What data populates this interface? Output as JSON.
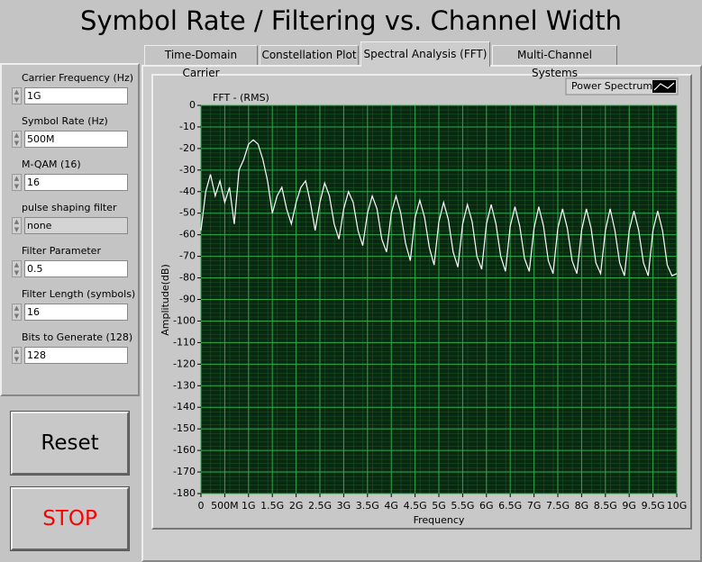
{
  "header": {
    "title": "Symbol Rate / Filtering vs. Channel Width"
  },
  "tabs": [
    "Time-Domain Carrier",
    "Constellation Plot",
    "Spectral Analysis (FFT)",
    "Multi-Channel Systems"
  ],
  "controls": [
    {
      "label": "Carrier Frequency (Hz)",
      "value": "1G"
    },
    {
      "label": "Symbol Rate (Hz)",
      "value": "500M"
    },
    {
      "label": "M-QAM (16)",
      "value": "16"
    },
    {
      "label": "pulse shaping filter",
      "value": "none"
    },
    {
      "label": "Filter Parameter",
      "value": "0.5"
    },
    {
      "label": "Filter Length (symbols)",
      "value": "16"
    },
    {
      "label": "Bits to Generate (128)",
      "value": "128"
    }
  ],
  "buttons": [
    "Reset",
    "STOP"
  ],
  "chart_data": {
    "type": "line",
    "title": "FFT - (RMS)",
    "x_label": "Frequency",
    "y_label": "Amplitude(dB)",
    "grid": true,
    "legend": "top-right",
    "xlim": [
      0,
      10000000000
    ],
    "xticks": [
      0,
      {
        "value": 500000000,
        "label": "500M"
      },
      {
        "value": 1000000000,
        "label": "1G"
      },
      {
        "value": 1500000000,
        "label": "1.5G"
      },
      {
        "value": 2000000000,
        "label": "2G"
      },
      {
        "value": 2500000000,
        "label": "2.5G"
      },
      {
        "value": 3000000000,
        "label": "3G"
      },
      {
        "value": 3500000000,
        "label": "3.5G"
      },
      {
        "value": 4000000000,
        "label": "4G"
      },
      {
        "value": 4500000000,
        "label": "4.5G"
      },
      {
        "value": 5000000000,
        "label": "5G"
      },
      {
        "value": 5500000000,
        "label": "5.5G"
      },
      {
        "value": 6000000000,
        "label": "6G"
      },
      {
        "value": 6500000000,
        "label": "6.5G"
      },
      {
        "value": 7000000000,
        "label": "7G"
      },
      {
        "value": 7500000000,
        "label": "7.5G"
      },
      {
        "value": 8000000000,
        "label": "8G"
      },
      {
        "value": 8500000000,
        "label": "8.5G"
      },
      {
        "value": 9000000000,
        "label": "9G"
      },
      {
        "value": 9500000000,
        "label": "9.5G"
      },
      {
        "value": 10000000000,
        "label": "10G"
      }
    ],
    "ylim": [
      -180,
      0
    ],
    "yticks": [
      0,
      -10,
      -20,
      -30,
      -40,
      -50,
      -60,
      -70,
      -80,
      -90,
      -100,
      -110,
      -120,
      -130,
      -140,
      -150,
      -160,
      -170,
      -180
    ],
    "x": [
      0,
      100000000,
      200000000,
      300000000,
      400000000,
      500000000,
      600000000,
      700000000,
      800000000,
      900000000,
      1000000000,
      1100000000,
      1200000000,
      1300000000,
      1400000000,
      1500000000,
      1600000000,
      1700000000,
      1800000000,
      1900000000,
      2000000000,
      2100000000,
      2200000000,
      2300000000,
      2400000000,
      2500000000,
      2600000000,
      2700000000,
      2800000000,
      2900000000,
      3000000000,
      3100000000,
      3200000000,
      3300000000,
      3400000000,
      3500000000,
      3600000000,
      3700000000,
      3800000000,
      3900000000,
      4000000000,
      4100000000,
      4200000000,
      4300000000,
      4400000000,
      4500000000,
      4600000000,
      4700000000,
      4800000000,
      4900000000,
      5000000000,
      5100000000,
      5200000000,
      5300000000,
      5400000000,
      5500000000,
      5600000000,
      5700000000,
      5800000000,
      5900000000,
      6000000000,
      6100000000,
      6200000000,
      6300000000,
      6400000000,
      6500000000,
      6600000000,
      6700000000,
      6800000000,
      6900000000,
      7000000000,
      7100000000,
      7200000000,
      7300000000,
      7400000000,
      7500000000,
      7600000000,
      7700000000,
      7800000000,
      7900000000,
      8000000000,
      8100000000,
      8200000000,
      8300000000,
      8400000000,
      8500000000,
      8600000000,
      8700000000,
      8800000000,
      8900000000,
      9000000000,
      9100000000,
      9200000000,
      9300000000,
      9400000000,
      9500000000,
      9600000000,
      9700000000,
      9800000000,
      9900000000,
      10000000000
    ],
    "series": [
      {
        "name": "Power Spectrum",
        "color": "#ffffff",
        "values": [
          -58,
          -40,
          -32,
          -42,
          -35,
          -45,
          -38,
          -55,
          -30,
          -25,
          -18,
          -16,
          -18,
          -25,
          -35,
          -50,
          -42,
          -38,
          -48,
          -55,
          -45,
          -38,
          -35,
          -45,
          -58,
          -45,
          -36,
          -42,
          -55,
          -62,
          -48,
          -40,
          -45,
          -58,
          -65,
          -50,
          -42,
          -48,
          -62,
          -68,
          -50,
          -42,
          -50,
          -64,
          -72,
          -52,
          -44,
          -52,
          -66,
          -74,
          -54,
          -45,
          -53,
          -68,
          -75,
          -55,
          -46,
          -54,
          -70,
          -76,
          -55,
          -46,
          -55,
          -70,
          -77,
          -56,
          -47,
          -56,
          -71,
          -77,
          -57,
          -47,
          -56,
          -72,
          -78,
          -57,
          -48,
          -57,
          -72,
          -78,
          -58,
          -48,
          -57,
          -73,
          -78,
          -58,
          -48,
          -58,
          -73,
          -79,
          -58,
          -49,
          -58,
          -73,
          -79,
          -58,
          -49,
          -58,
          -74,
          -79,
          -78
        ]
      }
    ]
  }
}
